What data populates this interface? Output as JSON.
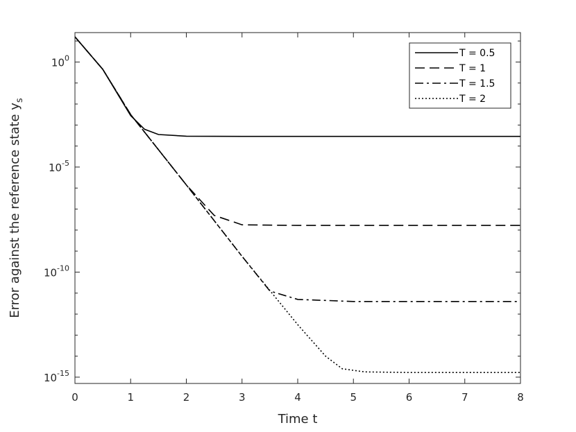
{
  "chart_data": {
    "type": "line",
    "title": "",
    "xlabel": "Time t",
    "ylabel": "Error against the reference state y",
    "ylabel_subscript": "s",
    "xlim": [
      0,
      8
    ],
    "ylim_exponent": [
      -15.3,
      1.4
    ],
    "y_scale": "log",
    "x_ticks": [
      "0",
      "1",
      "2",
      "3",
      "4",
      "5",
      "6",
      "7",
      "8"
    ],
    "y_ticks": [
      {
        "base": "10",
        "exp": "0",
        "value": 0
      },
      {
        "base": "10",
        "exp": "-5",
        "value": -5
      },
      {
        "base": "10",
        "exp": "-10",
        "value": -10
      },
      {
        "base": "10",
        "exp": "-15",
        "value": -15
      }
    ],
    "grid": false,
    "legend_position": "top-right",
    "series": [
      {
        "name": "T = 0.5",
        "dash": "solid",
        "points": [
          [
            0,
            1.2
          ],
          [
            0.5,
            -0.35
          ],
          [
            1.0,
            -2.55
          ],
          [
            1.25,
            -3.2
          ],
          [
            1.5,
            -3.45
          ],
          [
            2.0,
            -3.53
          ],
          [
            3.0,
            -3.54
          ],
          [
            8.0,
            -3.54
          ]
        ]
      },
      {
        "name": "T = 1",
        "dash": "dashed",
        "points": [
          [
            0,
            1.2
          ],
          [
            0.5,
            -0.35
          ],
          [
            1.0,
            -2.5
          ],
          [
            2.0,
            -5.85
          ],
          [
            2.5,
            -7.3
          ],
          [
            3.0,
            -7.75
          ],
          [
            4.0,
            -7.78
          ],
          [
            8.0,
            -7.78
          ]
        ]
      },
      {
        "name": "T = 1.5",
        "dash": "dashdot",
        "points": [
          [
            0,
            1.2
          ],
          [
            0.5,
            -0.35
          ],
          [
            1.0,
            -2.5
          ],
          [
            2.0,
            -5.85
          ],
          [
            3.0,
            -9.25
          ],
          [
            3.5,
            -10.9
          ],
          [
            4.0,
            -11.3
          ],
          [
            5.0,
            -11.4
          ],
          [
            8.0,
            -11.4
          ]
        ]
      },
      {
        "name": "T = 2",
        "dash": "dotted",
        "points": [
          [
            0,
            1.2
          ],
          [
            0.5,
            -0.35
          ],
          [
            1.0,
            -2.5
          ],
          [
            2.0,
            -5.85
          ],
          [
            3.0,
            -9.25
          ],
          [
            4.0,
            -12.5
          ],
          [
            4.5,
            -14.0
          ],
          [
            4.8,
            -14.6
          ],
          [
            5.2,
            -14.75
          ],
          [
            6.0,
            -14.78
          ],
          [
            8.0,
            -14.78
          ]
        ]
      }
    ]
  }
}
